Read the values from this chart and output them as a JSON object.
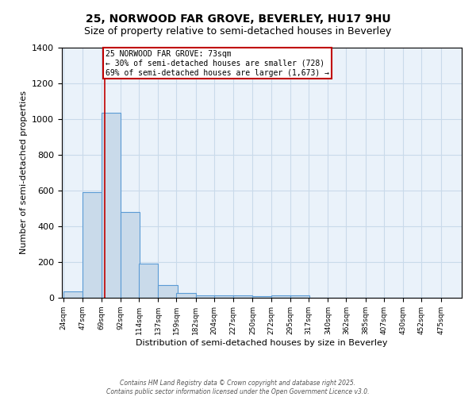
{
  "title": "25, NORWOOD FAR GROVE, BEVERLEY, HU17 9HU",
  "subtitle": "Size of property relative to semi-detached houses in Beverley",
  "xlabel": "Distribution of semi-detached houses by size in Beverley",
  "ylabel": "Number of semi-detached properties",
  "bin_labels": [
    "24sqm",
    "47sqm",
    "69sqm",
    "92sqm",
    "114sqm",
    "137sqm",
    "159sqm",
    "182sqm",
    "204sqm",
    "227sqm",
    "250sqm",
    "272sqm",
    "295sqm",
    "317sqm",
    "340sqm",
    "362sqm",
    "385sqm",
    "407sqm",
    "430sqm",
    "452sqm",
    "475sqm"
  ],
  "bin_edges": [
    24,
    47,
    69,
    92,
    114,
    137,
    159,
    182,
    204,
    227,
    250,
    272,
    295,
    317,
    340,
    362,
    385,
    407,
    430,
    452,
    475
  ],
  "bar_heights": [
    35,
    590,
    1035,
    480,
    190,
    70,
    25,
    15,
    15,
    15,
    8,
    15,
    15,
    0,
    0,
    0,
    0,
    0,
    0,
    0
  ],
  "bar_color": "#c9daea",
  "bar_edge_color": "#5b9bd5",
  "property_size": 73,
  "marker_line_color": "#c00000",
  "annotation_text": "25 NORWOOD FAR GROVE: 73sqm\n← 30% of semi-detached houses are smaller (728)\n69% of semi-detached houses are larger (1,673) →",
  "annotation_box_color": "#c00000",
  "ylim": [
    0,
    1400
  ],
  "yticks": [
    0,
    200,
    400,
    600,
    800,
    1000,
    1200,
    1400
  ],
  "grid_color": "#c9daea",
  "background_color": "#eaf2fa",
  "footer_line1": "Contains HM Land Registry data © Crown copyright and database right 2025.",
  "footer_line2": "Contains public sector information licensed under the Open Government Licence v3.0.",
  "title_fontsize": 10,
  "subtitle_fontsize": 9
}
